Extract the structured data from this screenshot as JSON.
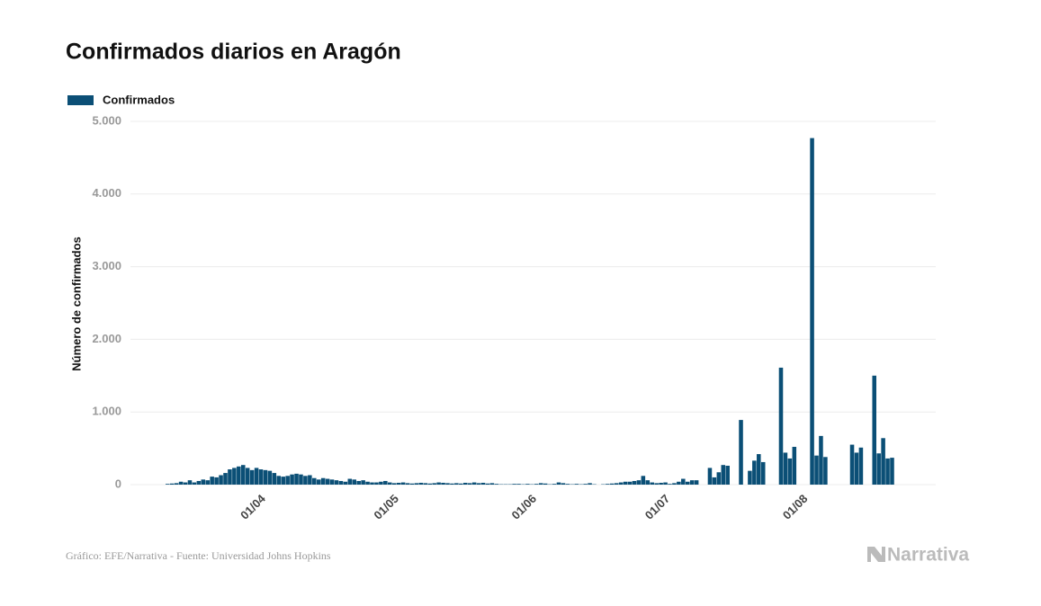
{
  "chart_data": {
    "type": "bar",
    "title": "Confirmados diarios en Aragón",
    "y_label": "Número de confirmados",
    "source": "Gráfico: EFE/Narrativa - Fuente: Universidad Johns Hopkins",
    "logo": "Narrativa",
    "legend": "top-left",
    "grid": true,
    "ylim": [
      0,
      5000
    ],
    "yticks": [
      0,
      {
        "value": 1000,
        "label": "1.000"
      },
      {
        "value": 2000,
        "label": "2.000"
      },
      {
        "value": 3000,
        "label": "3.000"
      },
      {
        "value": 4000,
        "label": "4.000"
      },
      {
        "value": 5000,
        "label": "5.000"
      }
    ],
    "categories": [
      null,
      null,
      null,
      null,
      null,
      null,
      null,
      null,
      null,
      null,
      null,
      null,
      null,
      null,
      null,
      null,
      null,
      null,
      null,
      null,
      "01/04",
      null,
      null,
      null,
      null,
      null,
      null,
      null,
      null,
      null,
      null,
      null,
      null,
      null,
      null,
      null,
      null,
      null,
      null,
      null,
      null,
      null,
      null,
      null,
      null,
      null,
      null,
      null,
      null,
      null,
      "01/05",
      null,
      null,
      null,
      null,
      null,
      null,
      null,
      null,
      null,
      null,
      null,
      null,
      null,
      null,
      null,
      null,
      null,
      null,
      null,
      null,
      null,
      null,
      null,
      null,
      null,
      null,
      null,
      null,
      null,
      null,
      "01/06",
      null,
      null,
      null,
      null,
      null,
      null,
      null,
      null,
      null,
      null,
      null,
      null,
      null,
      null,
      null,
      null,
      null,
      null,
      null,
      null,
      null,
      null,
      null,
      null,
      null,
      null,
      null,
      null,
      null,
      "01/07",
      null,
      null,
      null,
      null,
      null,
      null,
      null,
      null,
      null,
      null,
      null,
      null,
      null,
      null,
      null,
      null,
      null,
      null,
      null,
      null,
      null,
      null,
      null,
      null,
      null,
      null,
      null,
      null,
      null,
      null,
      "01/08",
      null,
      null,
      null,
      null,
      null,
      null,
      null,
      null,
      null,
      null,
      null,
      null,
      null,
      null,
      null,
      null,
      null,
      null,
      null,
      null,
      null
    ],
    "series": [
      {
        "name": "Confirmados",
        "color": "#0b4f76",
        "values": [
          10,
          15,
          20,
          40,
          30,
          60,
          30,
          50,
          70,
          60,
          110,
          100,
          130,
          160,
          210,
          230,
          250,
          270,
          230,
          200,
          230,
          210,
          200,
          190,
          160,
          120,
          110,
          120,
          140,
          150,
          140,
          120,
          130,
          90,
          70,
          90,
          80,
          70,
          60,
          50,
          40,
          80,
          70,
          50,
          60,
          40,
          30,
          30,
          40,
          50,
          30,
          20,
          25,
          30,
          20,
          15,
          20,
          25,
          20,
          15,
          20,
          30,
          25,
          20,
          15,
          20,
          15,
          25,
          20,
          30,
          20,
          25,
          15,
          20,
          10,
          5,
          5,
          5,
          10,
          10,
          5,
          10,
          5,
          10,
          20,
          15,
          5,
          10,
          30,
          20,
          10,
          5,
          10,
          5,
          10,
          20,
          5,
          0,
          5,
          10,
          15,
          20,
          30,
          40,
          40,
          50,
          60,
          120,
          60,
          30,
          20,
          25,
          30,
          10,
          20,
          40,
          80,
          40,
          60,
          60,
          0,
          0,
          230,
          100,
          170,
          270,
          260,
          0,
          0,
          890,
          0,
          190,
          330,
          420,
          310,
          0,
          0,
          0,
          1610,
          440,
          360,
          520,
          0,
          0,
          0,
          4770,
          400,
          670,
          380,
          0,
          0,
          0,
          0,
          0,
          550,
          440,
          510,
          0,
          0,
          1500,
          430,
          640,
          360,
          370
        ]
      }
    ]
  }
}
